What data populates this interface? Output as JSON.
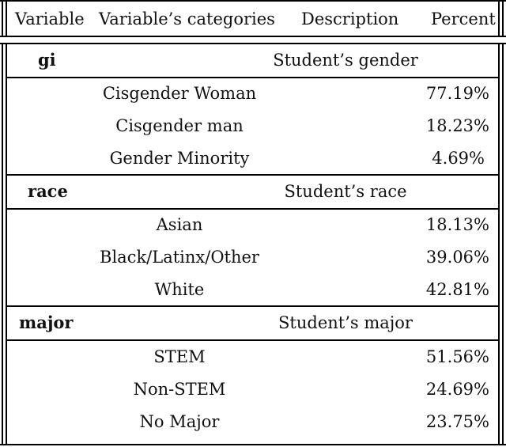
{
  "header": {
    "variable": "Variable",
    "categories": "Variable’s categories",
    "description": "Description",
    "percent": "Percent"
  },
  "groups": [
    {
      "variable": "gi",
      "description": "Student’s gender",
      "rows": [
        {
          "category": "Cisgender Woman",
          "percent": "77.19%"
        },
        {
          "category": "Cisgender man",
          "percent": "18.23%"
        },
        {
          "category": "Gender Minority",
          "percent": "4.69%"
        }
      ]
    },
    {
      "variable": "race",
      "description": "Student’s race",
      "rows": [
        {
          "category": "Asian",
          "percent": "18.13%"
        },
        {
          "category": "Black/Latinx/Other",
          "percent": "39.06%"
        },
        {
          "category": "White",
          "percent": "42.81%"
        }
      ]
    },
    {
      "variable": "major",
      "description": "Student’s major",
      "rows": [
        {
          "category": "STEM",
          "percent": "51.56%"
        },
        {
          "category": "Non-STEM",
          "percent": "24.69%"
        },
        {
          "category": "No Major",
          "percent": "23.75%"
        }
      ]
    }
  ]
}
